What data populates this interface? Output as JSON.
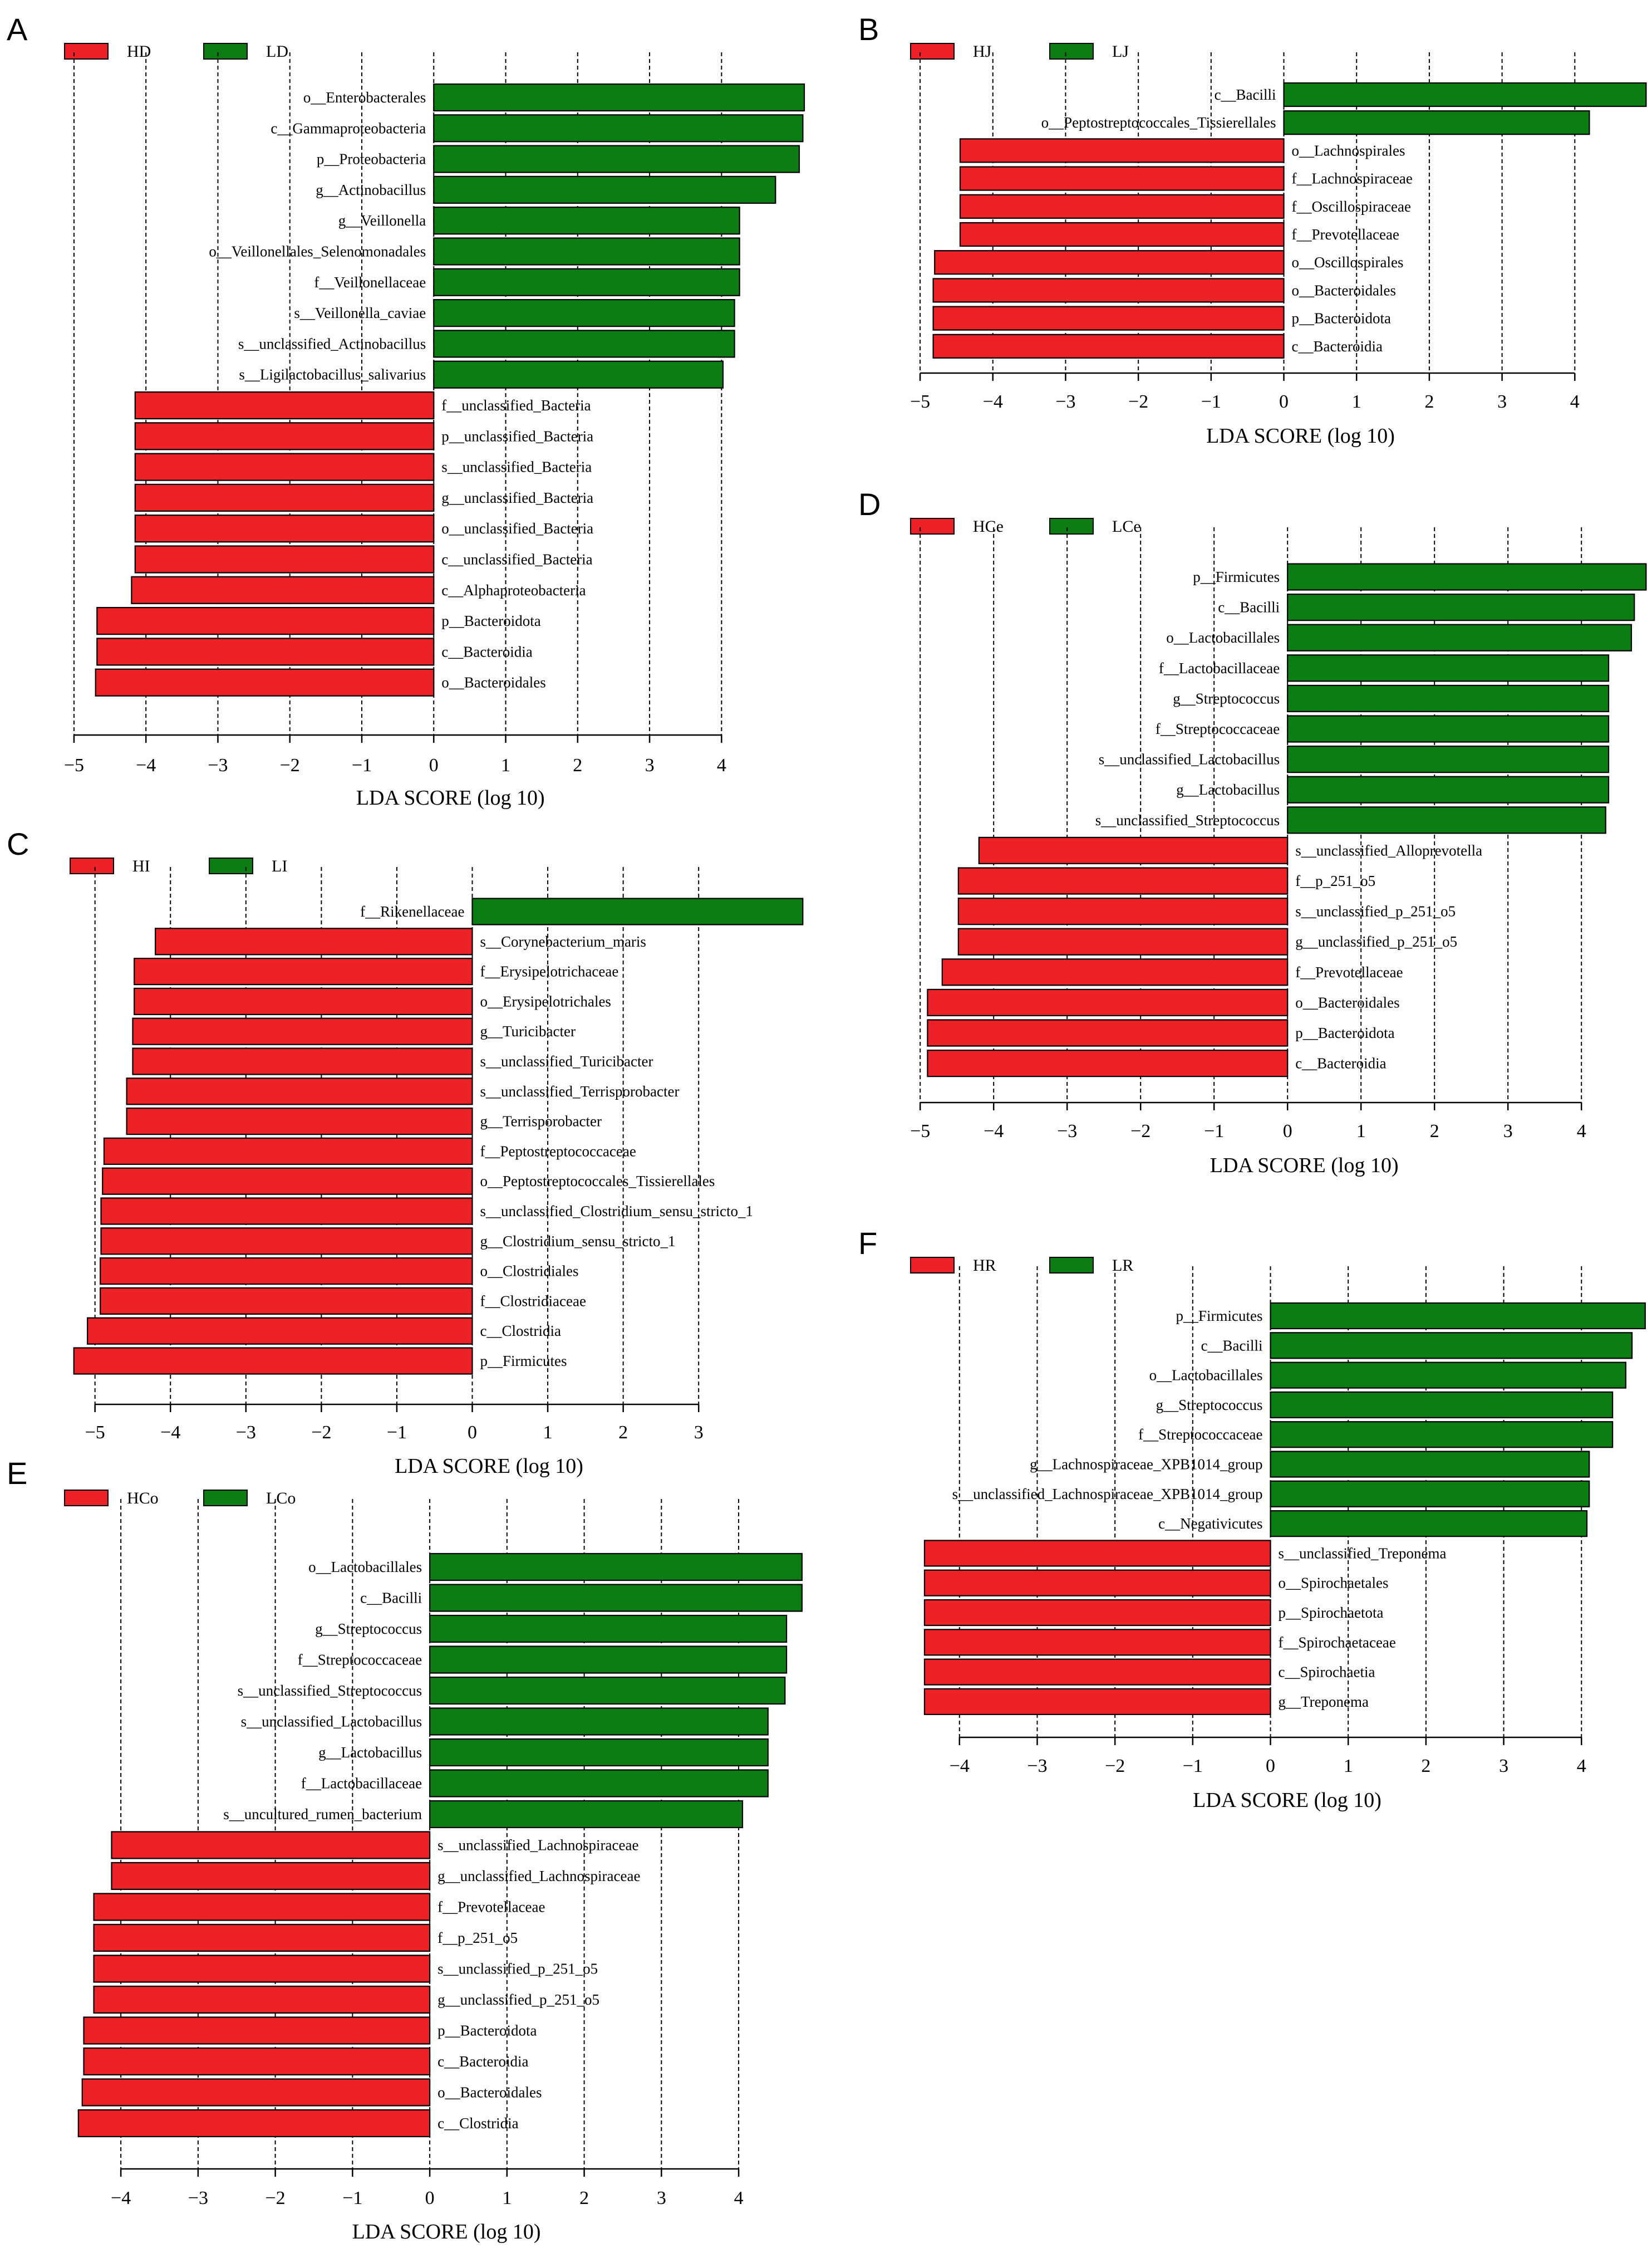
{
  "colors": {
    "enriched_h": "#EC2227",
    "enriched_l": "#0B7D13"
  },
  "chart_data": [
    {
      "panel": "A",
      "type": "bar",
      "orientation": "horizontal",
      "legend": [
        "HD",
        "LD"
      ],
      "xlabel": "LDA SCORE (log 10)",
      "xticks": [
        -5,
        -4,
        -3,
        -2,
        -1,
        0,
        1,
        2,
        3,
        4
      ],
      "xlim": [
        -5.1,
        5.15
      ],
      "labels": [
        "o__Enterobacterales",
        "c__Gammaproteobacteria",
        "p__Proteobacteria",
        "g__Actinobacillus",
        "g__Veillonella",
        "o__Veillonellales_Selenomonadales",
        "f__Veillonellaceae",
        "s__Veillonella_caviae",
        "s__unclassified_Actinobacillus",
        "s__Ligilactobacillus_salivarius",
        "f__unclassified_Bacteria",
        "p__unclassified_Bacteria",
        "s__unclassified_Bacteria",
        "g__unclassified_Bacteria",
        "o__unclassified_Bacteria",
        "c__unclassified_Bacteria",
        "c__Alphaproteobacteria",
        "p__Bacteroidota",
        "c__Bacteroidia",
        "o__Bacteroidales"
      ],
      "values": [
        5.15,
        5.13,
        5.08,
        4.75,
        4.25,
        4.25,
        4.25,
        4.18,
        4.18,
        4.02,
        -4.15,
        -4.15,
        -4.15,
        -4.15,
        -4.15,
        -4.15,
        -4.2,
        -4.68,
        -4.68,
        -4.7
      ]
    },
    {
      "panel": "B",
      "type": "bar",
      "orientation": "horizontal",
      "legend": [
        "HJ",
        "LJ"
      ],
      "xlabel": "LDA SCORE (log 10)",
      "xticks": [
        -5,
        -4,
        -3,
        -2,
        -1,
        0,
        1,
        2,
        3,
        4
      ],
      "xlim": [
        -5.1,
        5.0
      ],
      "labels": [
        "c__Bacilli",
        "o__Peptostreptococcales_Tissierellales",
        "o__Lachnospirales",
        "f__Lachnospiraceae",
        "f__Oscillospiraceae",
        "f__Prevotellaceae",
        "o__Oscillospirales",
        "o__Bacteroidales",
        "p__Bacteroidota",
        "c__Bacteroidia"
      ],
      "values": [
        4.98,
        4.2,
        -4.45,
        -4.45,
        -4.45,
        -4.45,
        -4.8,
        -4.82,
        -4.82,
        -4.82
      ]
    },
    {
      "panel": "C",
      "type": "bar",
      "orientation": "horizontal",
      "legend": [
        "HI",
        "LI"
      ],
      "xlabel": "LDA SCORE (log 10)",
      "xticks": [
        -5,
        -4,
        -3,
        -2,
        -1,
        0,
        1,
        2,
        3
      ],
      "xlim": [
        -5.3,
        4.4
      ],
      "labels": [
        "f__Rikenellaceae",
        "s__Corynebacterium_maris",
        "f__Erysipelotrichaceae",
        "o__Erysipelotrichales",
        "g__Turicibacter",
        "s__unclassified_Turicibacter",
        "s__unclassified_Terrisporobacter",
        "g__Terrisporobacter",
        "f__Peptostreptococcaceae",
        "o__Peptostreptococcales_Tissierellales",
        "s__unclassified_Clostridium_sensu_stricto_1",
        "g__Clostridium_sensu_stricto_1",
        "o__Clostridiales",
        "f__Clostridiaceae",
        "c__Clostridia",
        "p__Firmicutes"
      ],
      "values": [
        4.38,
        -4.2,
        -4.48,
        -4.48,
        -4.5,
        -4.5,
        -4.58,
        -4.58,
        -4.88,
        -4.9,
        -4.92,
        -4.92,
        -4.93,
        -4.93,
        -5.1,
        -5.28
      ]
    },
    {
      "panel": "D",
      "type": "bar",
      "orientation": "horizontal",
      "legend": [
        "HCe",
        "LCe"
      ],
      "xlabel": "LDA SCORE (log 10)",
      "xticks": [
        -5,
        -4,
        -3,
        -2,
        -1,
        0,
        1,
        2,
        3,
        4
      ],
      "xlim": [
        -5.1,
        4.9
      ],
      "labels": [
        "p__Firmicutes",
        "c__Bacilli",
        "o__Lactobacillales",
        "f__Lactobacillaceae",
        "g__Streptococcus",
        "f__Streptococcaceae",
        "s__unclassified_Lactobacillus",
        "g__Lactobacillus",
        "s__unclassified_Streptococcus",
        "s__unclassified_Alloprevotella",
        "f__p_251_o5",
        "s__unclassified_p_251_o5",
        "g__unclassified_p_251_o5",
        "f__Prevotellaceae",
        "o__Bacteroidales",
        "p__Bacteroidota",
        "c__Bacteroidia"
      ],
      "values": [
        4.88,
        4.72,
        4.68,
        4.37,
        4.37,
        4.37,
        4.37,
        4.37,
        4.33,
        -4.2,
        -4.48,
        -4.48,
        -4.48,
        -4.7,
        -4.9,
        -4.9,
        -4.9
      ]
    },
    {
      "panel": "E",
      "type": "bar",
      "orientation": "horizontal",
      "legend": [
        "HCo",
        "LCo"
      ],
      "xlabel": "LDA SCORE (log 10)",
      "xticks": [
        -4,
        -3,
        -2,
        -1,
        0,
        1,
        2,
        3,
        4
      ],
      "xlim": [
        -4.7,
        4.85
      ],
      "labels": [
        "o__Lactobacillales",
        "c__Bacilli",
        "g__Streptococcus",
        "f__Streptococcaceae",
        "s__unclassified_Streptococcus",
        "s__unclassified_Lactobacillus",
        "g__Lactobacillus",
        "f__Lactobacillaceae",
        "s__uncultured_rumen_bacterium",
        "s__unclassified_Lachnospiraceae",
        "g__unclassified_Lachnospiraceae",
        "f__Prevotellaceae",
        "f__p_251_o5",
        "s__unclassified_p_251_o5",
        "g__unclassified_p_251_o5",
        "p__Bacteroidota",
        "c__Bacteroidia",
        "o__Bacteroidales",
        "c__Clostridia"
      ],
      "values": [
        4.82,
        4.82,
        4.62,
        4.62,
        4.6,
        4.38,
        4.38,
        4.38,
        4.05,
        -4.12,
        -4.12,
        -4.35,
        -4.35,
        -4.35,
        -4.35,
        -4.48,
        -4.48,
        -4.5,
        -4.55
      ]
    },
    {
      "panel": "F",
      "type": "bar",
      "orientation": "horizontal",
      "legend": [
        "HR",
        "LR"
      ],
      "xlabel": "LDA SCORE (log 10)",
      "xticks": [
        -4,
        -3,
        -2,
        -1,
        0,
        1,
        2,
        3,
        4
      ],
      "xlim": [
        -4.6,
        4.85
      ],
      "labels": [
        "p__Firmicutes",
        "c__Bacilli",
        "o__Lactobacillales",
        "g__Streptococcus",
        "f__Streptococcaceae",
        "g__Lachnospiraceae_XPB1014_group",
        "s__unclassified_Lachnospiraceae_XPB1014_group",
        "c__Negativicutes",
        "s__unclassified_Treponema",
        "o__Spirochaetales",
        "p__Spirochaetota",
        "f__Spirochaetaceae",
        "c__Spirochaetia",
        "g__Treponema"
      ],
      "values": [
        4.82,
        4.65,
        4.57,
        4.4,
        4.4,
        4.1,
        4.1,
        4.07,
        -4.45,
        -4.45,
        -4.45,
        -4.45,
        -4.45,
        -4.45
      ]
    }
  ]
}
